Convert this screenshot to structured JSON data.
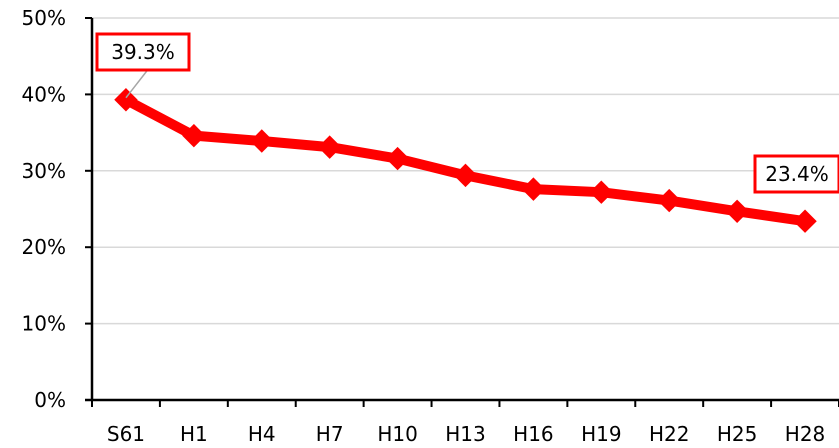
{
  "chart_data": {
    "type": "line",
    "categories": [
      "S61",
      "H1",
      "H4",
      "H7",
      "H10",
      "H13",
      "H16",
      "H19",
      "H22",
      "H25",
      "H28"
    ],
    "series": [
      {
        "values": [
          39.3,
          34.6,
          33.9,
          33.1,
          31.6,
          29.4,
          27.6,
          27.2,
          26.1,
          24.7,
          23.4
        ]
      }
    ],
    "ylim": [
      0,
      50
    ],
    "y_ticks": [
      "0%",
      "10%",
      "20%",
      "30%",
      "40%",
      "50%"
    ],
    "grid": true,
    "callouts": [
      {
        "index": 0,
        "text": "39.3%"
      },
      {
        "index": 10,
        "text": "23.4%"
      }
    ],
    "colors": {
      "line": "#ff0000",
      "grid": "#d9d9d9",
      "axis": "#000000",
      "callout_border": "#ff0000"
    }
  }
}
